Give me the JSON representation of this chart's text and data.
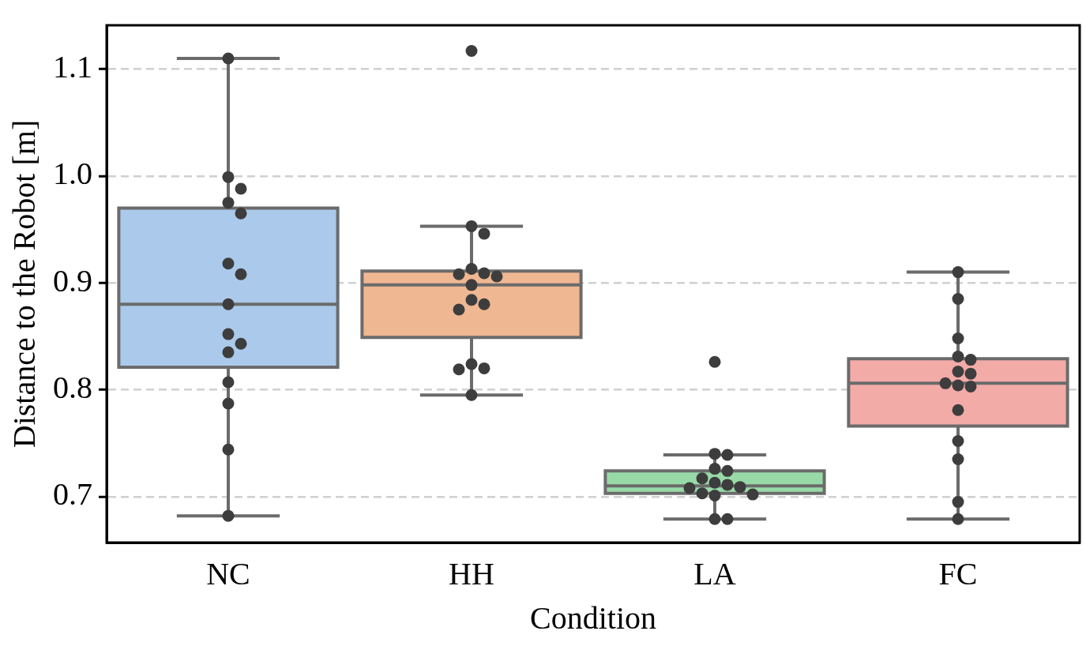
{
  "chart_data": {
    "type": "box",
    "xlabel": "Condition",
    "ylabel": "Distance to the Robot [m]",
    "categories": [
      "NC",
      "HH",
      "LA",
      "FC"
    ],
    "colors": [
      "#abc9ea",
      "#efb792",
      "#98daa7",
      "#f3aba8"
    ],
    "boxes": [
      {
        "low": 0.682,
        "q1": 0.821,
        "median": 0.88,
        "q3": 0.97,
        "high": 1.11
      },
      {
        "low": 0.795,
        "q1": 0.849,
        "median": 0.898,
        "q3": 0.911,
        "high": 0.953
      },
      {
        "low": 0.679,
        "q1": 0.703,
        "median": 0.71,
        "q3": 0.724,
        "high": 0.739
      },
      {
        "low": 0.679,
        "q1": 0.766,
        "median": 0.806,
        "q3": 0.829,
        "high": 0.91
      }
    ],
    "series": [
      {
        "type": "scatter",
        "color": "#3d3d3d",
        "x": [
          "NC",
          "NC",
          "NC",
          "NC",
          "NC",
          "NC",
          "NC",
          "NC",
          "NC",
          "NC",
          "NC",
          "NC",
          "NC",
          "NC",
          "NC",
          "HH",
          "HH",
          "HH",
          "HH",
          "HH",
          "HH",
          "HH",
          "HH",
          "HH",
          "HH",
          "HH",
          "HH",
          "HH",
          "HH",
          "HH",
          "LA",
          "LA",
          "LA",
          "LA",
          "LA",
          "LA",
          "LA",
          "LA",
          "LA",
          "LA",
          "LA",
          "LA",
          "LA",
          "LA",
          "LA",
          "FC",
          "FC",
          "FC",
          "FC",
          "FC",
          "FC",
          "FC",
          "FC",
          "FC",
          "FC",
          "FC",
          "FC",
          "FC",
          "FC",
          "FC"
        ],
        "values": [
          1.11,
          0.999,
          0.988,
          0.975,
          0.965,
          0.918,
          0.908,
          0.88,
          0.852,
          0.843,
          0.835,
          0.807,
          0.787,
          0.744,
          0.682,
          1.117,
          0.953,
          0.946,
          0.913,
          0.906,
          0.908,
          0.909,
          0.898,
          0.884,
          0.88,
          0.875,
          0.824,
          0.82,
          0.819,
          0.795,
          0.826,
          0.74,
          0.739,
          0.726,
          0.724,
          0.717,
          0.713,
          0.711,
          0.709,
          0.708,
          0.703,
          0.702,
          0.701,
          0.679,
          0.679,
          0.91,
          0.885,
          0.848,
          0.831,
          0.828,
          0.817,
          0.815,
          0.804,
          0.806,
          0.803,
          0.781,
          0.752,
          0.735,
          0.695,
          0.679
        ]
      }
    ],
    "ylim": [
      0.657,
      1.141
    ],
    "yticks": [
      0.7,
      0.8,
      0.9,
      {
        "value": 1,
        "label": "1.0"
      },
      1.1
    ],
    "grid": "y",
    "legend": false
  }
}
